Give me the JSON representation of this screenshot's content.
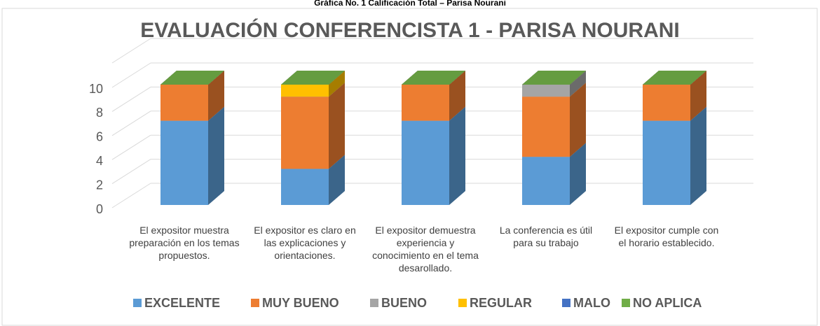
{
  "caption": "Gráfica No. 1 Calificación Total – Parisa Nourani",
  "chart_data": {
    "type": "bar3d_stacked",
    "title": "EVALUACIÓN CONFERENCISTA  1 - PARISA NOURANI",
    "categories": [
      "El expositor muestra preparación en los temas propuestos.",
      "El  expositor es claro en las explicaciones y orientaciones.",
      "El expositor demuestra experiencia y conocimiento en el tema desarollado.",
      "La conferencia es útil para su trabajo",
      "El expositor cumple con el horario establecido."
    ],
    "series": [
      {
        "name": "EXCELENTE",
        "color": "#5b9bd5",
        "values": [
          7,
          3,
          7,
          4,
          7
        ]
      },
      {
        "name": "MUY BUENO",
        "color": "#ed7d31",
        "values": [
          3,
          6,
          3,
          5,
          3
        ]
      },
      {
        "name": "BUENO",
        "color": "#a5a5a5",
        "values": [
          0,
          0,
          0,
          1,
          0
        ]
      },
      {
        "name": "REGULAR",
        "color": "#ffc000",
        "values": [
          0,
          1,
          0,
          0,
          0
        ]
      },
      {
        "name": "MALO",
        "color": "#4472c4",
        "values": [
          0,
          0,
          0,
          0,
          0
        ]
      },
      {
        "name": "NO APLICA",
        "color": "#70ad47",
        "values": [
          0,
          0,
          0,
          0,
          0
        ]
      }
    ],
    "ylim": [
      0,
      10
    ],
    "yticks": [
      0,
      2,
      4,
      6,
      8,
      10
    ],
    "grid": true,
    "legend": "bottom"
  }
}
